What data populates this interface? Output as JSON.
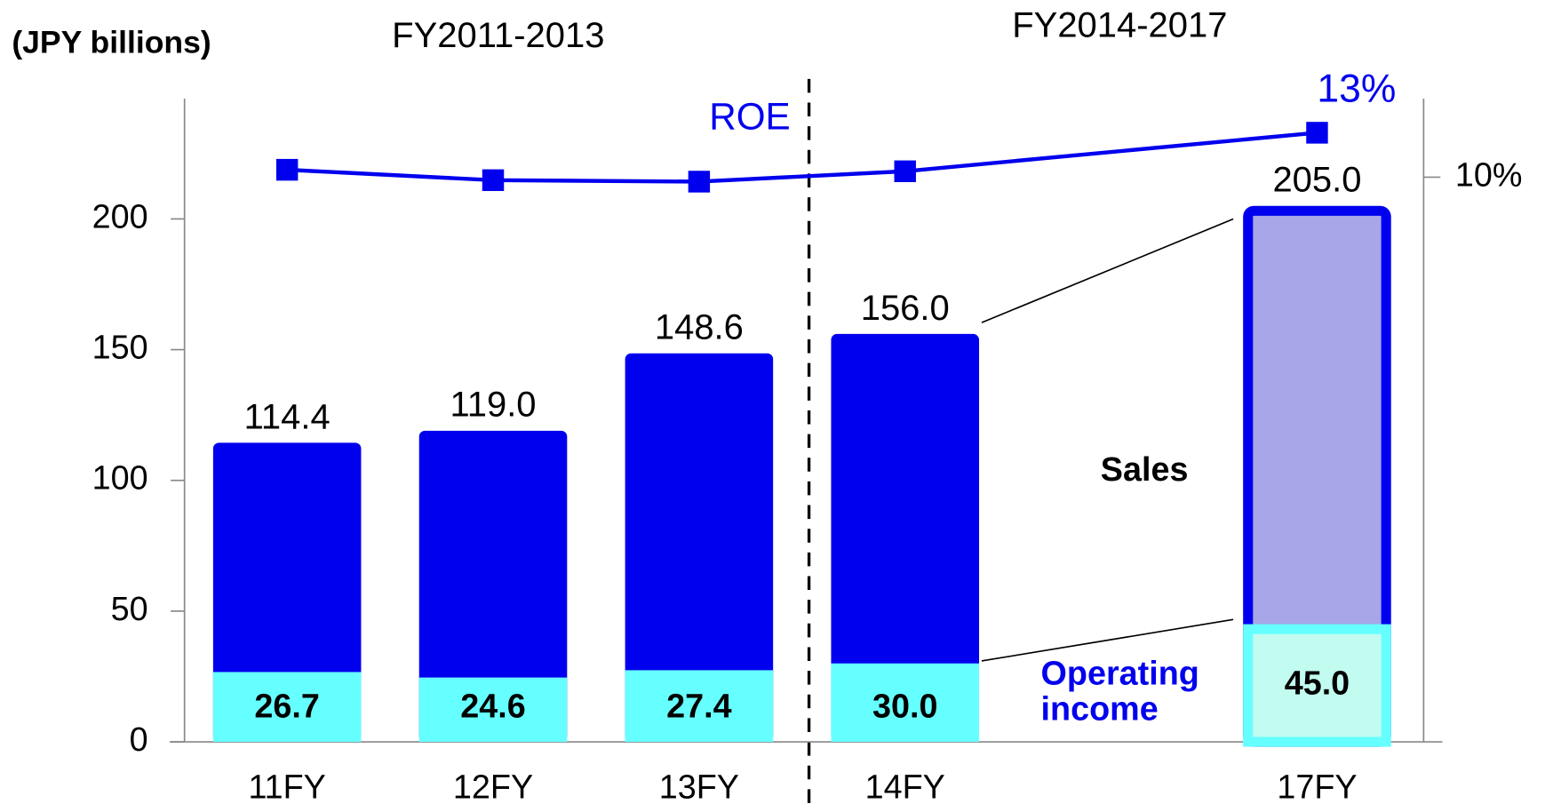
{
  "chart_data": {
    "type": "bar",
    "unit_label": "(JPY billions)",
    "period_labels": [
      "FY2011-2013",
      "FY2014-2017"
    ],
    "categories": [
      "11FY",
      "12FY",
      "13FY",
      "14FY",
      "17FY"
    ],
    "series": [
      {
        "name": "Sales",
        "color": "#0000ee",
        "colors": [
          "#0000ee",
          "#0000ee",
          "#0000ee",
          "#0000ee",
          "#a6a6e8"
        ],
        "values": [
          114.4,
          119.0,
          148.6,
          156.0,
          205.0
        ],
        "value_labels": [
          "114.4",
          "119.0",
          "148.6",
          "156.0",
          "205.0"
        ]
      },
      {
        "name": "Operating income",
        "color": "#66ffff",
        "colors": [
          "#66ffff",
          "#66ffff",
          "#66ffff",
          "#66ffff",
          "#c2fbf0"
        ],
        "values": [
          26.7,
          24.6,
          27.4,
          30.0,
          45.0
        ],
        "value_labels": [
          "26.7",
          "24.6",
          "27.4",
          "30.0",
          "45.0"
        ]
      },
      {
        "name": "ROE",
        "type": "line",
        "axis": "y2",
        "color": "#0000ee",
        "values": [
          10.5,
          9.8,
          9.7,
          10.4,
          13.0
        ],
        "value_labels": [
          null,
          null,
          null,
          null,
          "13%"
        ]
      }
    ],
    "ylim": [
      0,
      246
    ],
    "yticks": [
      0,
      50,
      100,
      150,
      200
    ],
    "y2lim": [
      -28.1,
      15.3
    ],
    "y2ticks": [
      {
        "value": 10,
        "label": "10%"
      }
    ]
  }
}
